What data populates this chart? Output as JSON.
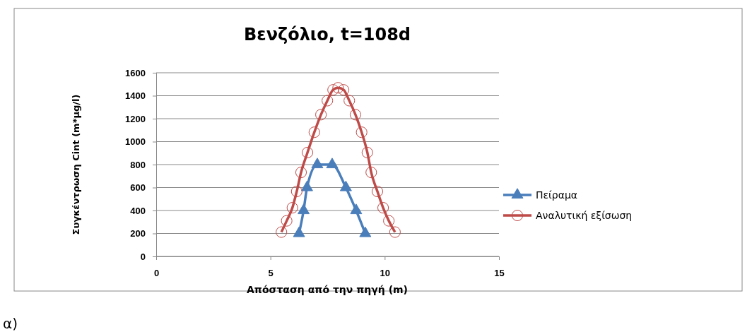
{
  "chart_data": {
    "type": "line",
    "title": "Βενζόλιο, t=108d",
    "xlabel": "Απόσταση από την πηγή (m)",
    "ylabel": "Συγκέντρωση  Cint (m*μg/l)",
    "xlim": [
      0,
      15
    ],
    "xticks": [
      0,
      5,
      10,
      15
    ],
    "ylim": [
      0,
      1600
    ],
    "yticks": [
      0,
      200,
      400,
      600,
      800,
      1000,
      1200,
      1400,
      1600
    ],
    "grid": "y",
    "legend": "right",
    "annotations": [
      "α)"
    ],
    "series": [
      {
        "name": "Πείραμα",
        "color": "#4a7ebb",
        "marker": "triangle",
        "x": [
          6.25,
          6.45,
          6.6,
          7.05,
          7.7,
          8.3,
          8.75,
          9.15
        ],
        "values": [
          200,
          400,
          600,
          800,
          800,
          600,
          400,
          200
        ]
      },
      {
        "name": "Αναλυτική εξίσωση",
        "color": "#be4b48",
        "marker": "circle",
        "x": [
          5.48,
          5.71,
          5.96,
          6.15,
          6.34,
          6.62,
          6.92,
          7.21,
          7.49,
          7.74,
          7.96,
          8.2,
          8.45,
          8.72,
          8.99,
          9.24,
          9.41,
          9.68,
          9.93,
          10.18,
          10.45
        ],
        "values": [
          212,
          310,
          424,
          566,
          732,
          905,
          1082,
          1235,
          1357,
          1451,
          1469,
          1451,
          1357,
          1235,
          1082,
          905,
          732,
          566,
          424,
          310,
          212
        ]
      }
    ]
  }
}
